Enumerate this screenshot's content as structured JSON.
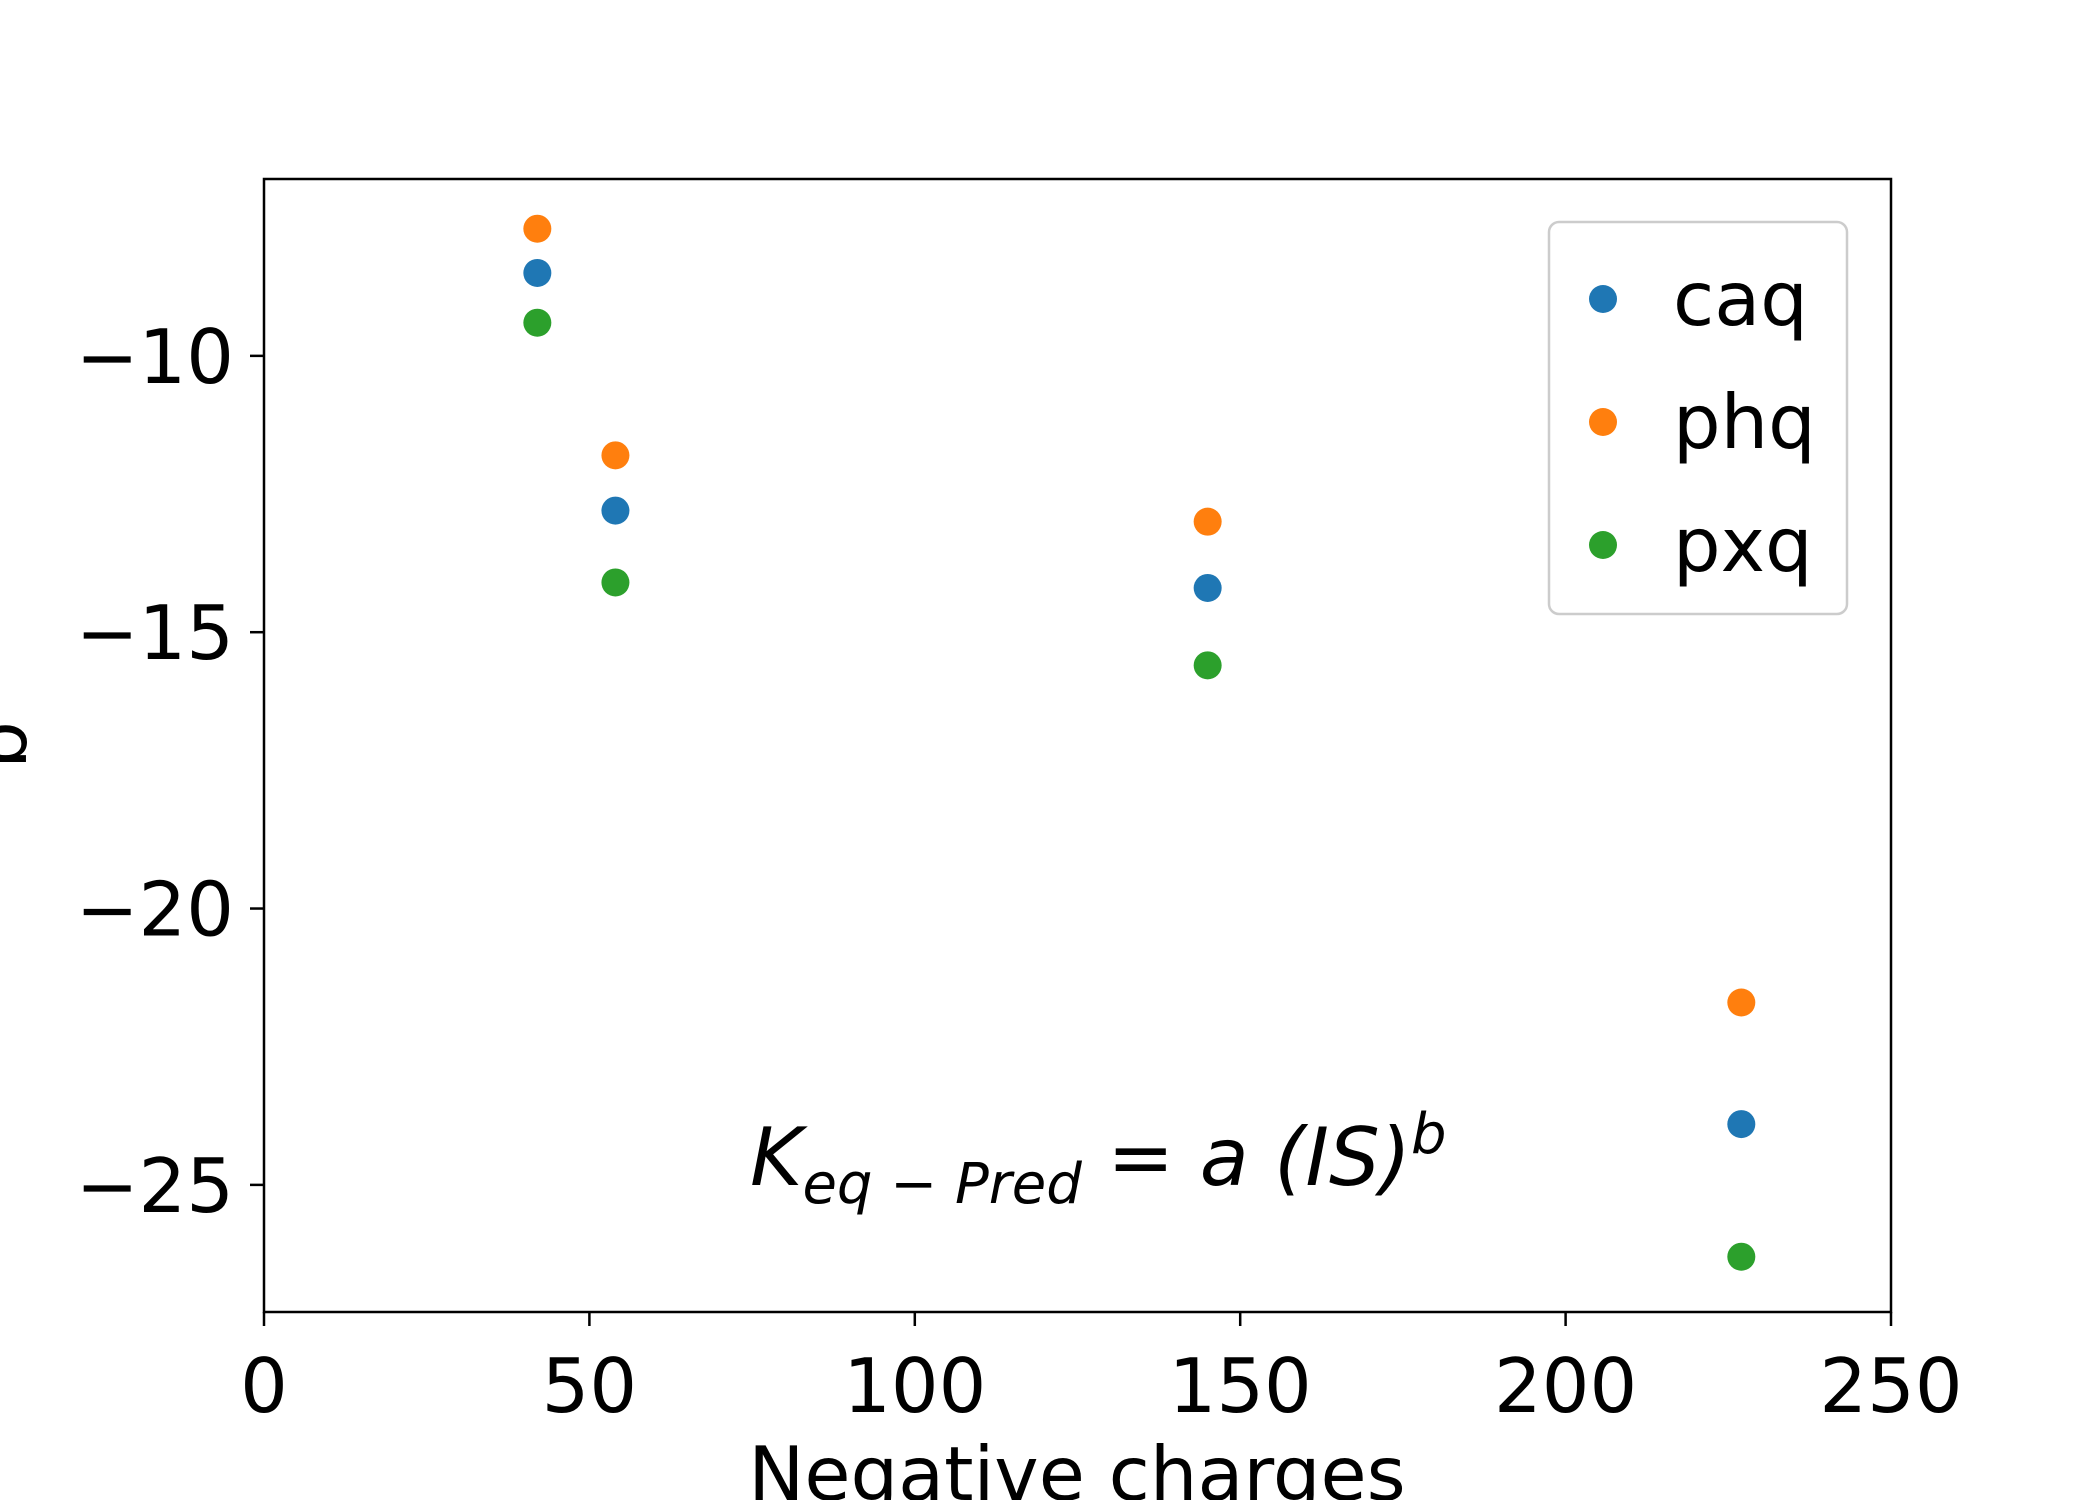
{
  "chart_data": {
    "type": "scatter",
    "xlabel": "Negative charges",
    "ylabel": "b",
    "xlim": [
      0,
      250
    ],
    "ylim": [
      -27.3,
      -6.8
    ],
    "x_ticks": [
      0,
      50,
      100,
      150,
      200,
      250
    ],
    "x_tick_labels": [
      "0",
      "50",
      "100",
      "150",
      "200",
      "250"
    ],
    "y_ticks": [
      -10,
      -15,
      -20,
      -25
    ],
    "y_tick_labels": [
      "−10",
      "−15",
      "−20",
      "−25"
    ],
    "grid": false,
    "legend_position": "top-right",
    "annotation": {
      "base": "K",
      "subscript": "eq − Pred",
      "middle": " = a (IS)",
      "superscript": "b"
    },
    "series": [
      {
        "name": "caq",
        "color": "#1f77b4",
        "x": [
          42,
          54,
          145,
          227
        ],
        "y": [
          -8.5,
          -12.8,
          -14.2,
          -23.9
        ]
      },
      {
        "name": "phq",
        "color": "#ff7f0e",
        "x": [
          42,
          54,
          145,
          227
        ],
        "y": [
          -7.7,
          -11.8,
          -13.0,
          -21.7
        ]
      },
      {
        "name": "pxq",
        "color": "#2ca02c",
        "x": [
          42,
          54,
          145,
          227
        ],
        "y": [
          -9.4,
          -14.1,
          -15.6,
          -26.3
        ]
      }
    ]
  }
}
